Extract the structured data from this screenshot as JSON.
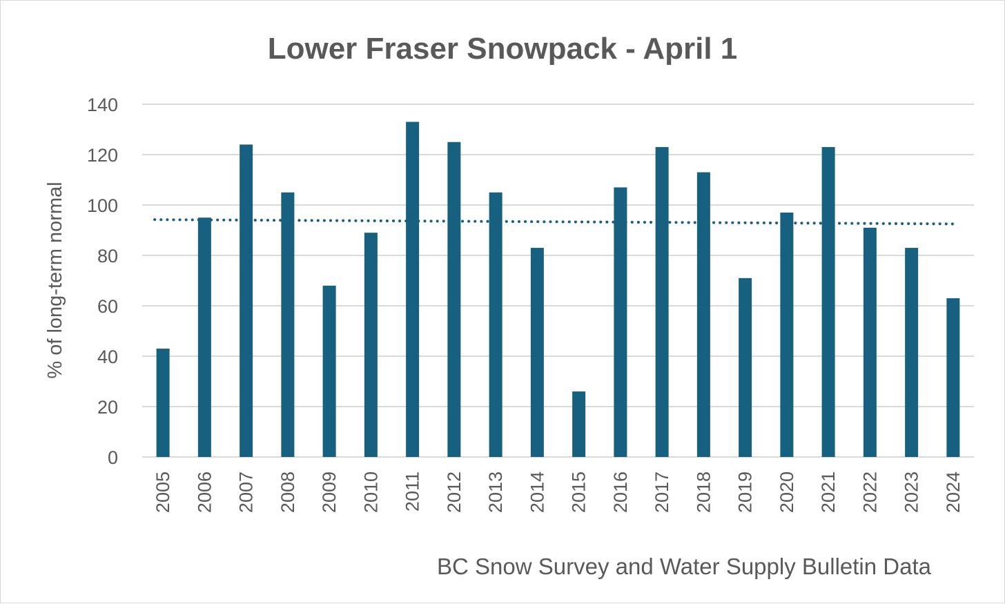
{
  "chart_data": {
    "type": "bar",
    "title": "Lower Fraser Snowpack - April 1",
    "ylabel": "% of long-term normal",
    "xlabel": "",
    "ylim": [
      0,
      140
    ],
    "yticks": [
      0,
      20,
      40,
      60,
      80,
      100,
      120,
      140
    ],
    "grid": true,
    "categories": [
      "2005",
      "2006",
      "2007",
      "2008",
      "2009",
      "2010",
      "2011",
      "2012",
      "2013",
      "2014",
      "2015",
      "2016",
      "2017",
      "2018",
      "2019",
      "2020",
      "2021",
      "2022",
      "2023",
      "2024"
    ],
    "values": [
      43,
      95,
      124,
      105,
      68,
      89,
      133,
      125,
      105,
      83,
      26,
      107,
      123,
      113,
      71,
      97,
      123,
      91,
      83,
      63
    ],
    "trendline": {
      "style": "dotted",
      "start": 94.2,
      "end": 92.5
    },
    "bar_color": "#17607f",
    "annotation": "BC Snow Survey and Water Supply Bulletin Data"
  }
}
